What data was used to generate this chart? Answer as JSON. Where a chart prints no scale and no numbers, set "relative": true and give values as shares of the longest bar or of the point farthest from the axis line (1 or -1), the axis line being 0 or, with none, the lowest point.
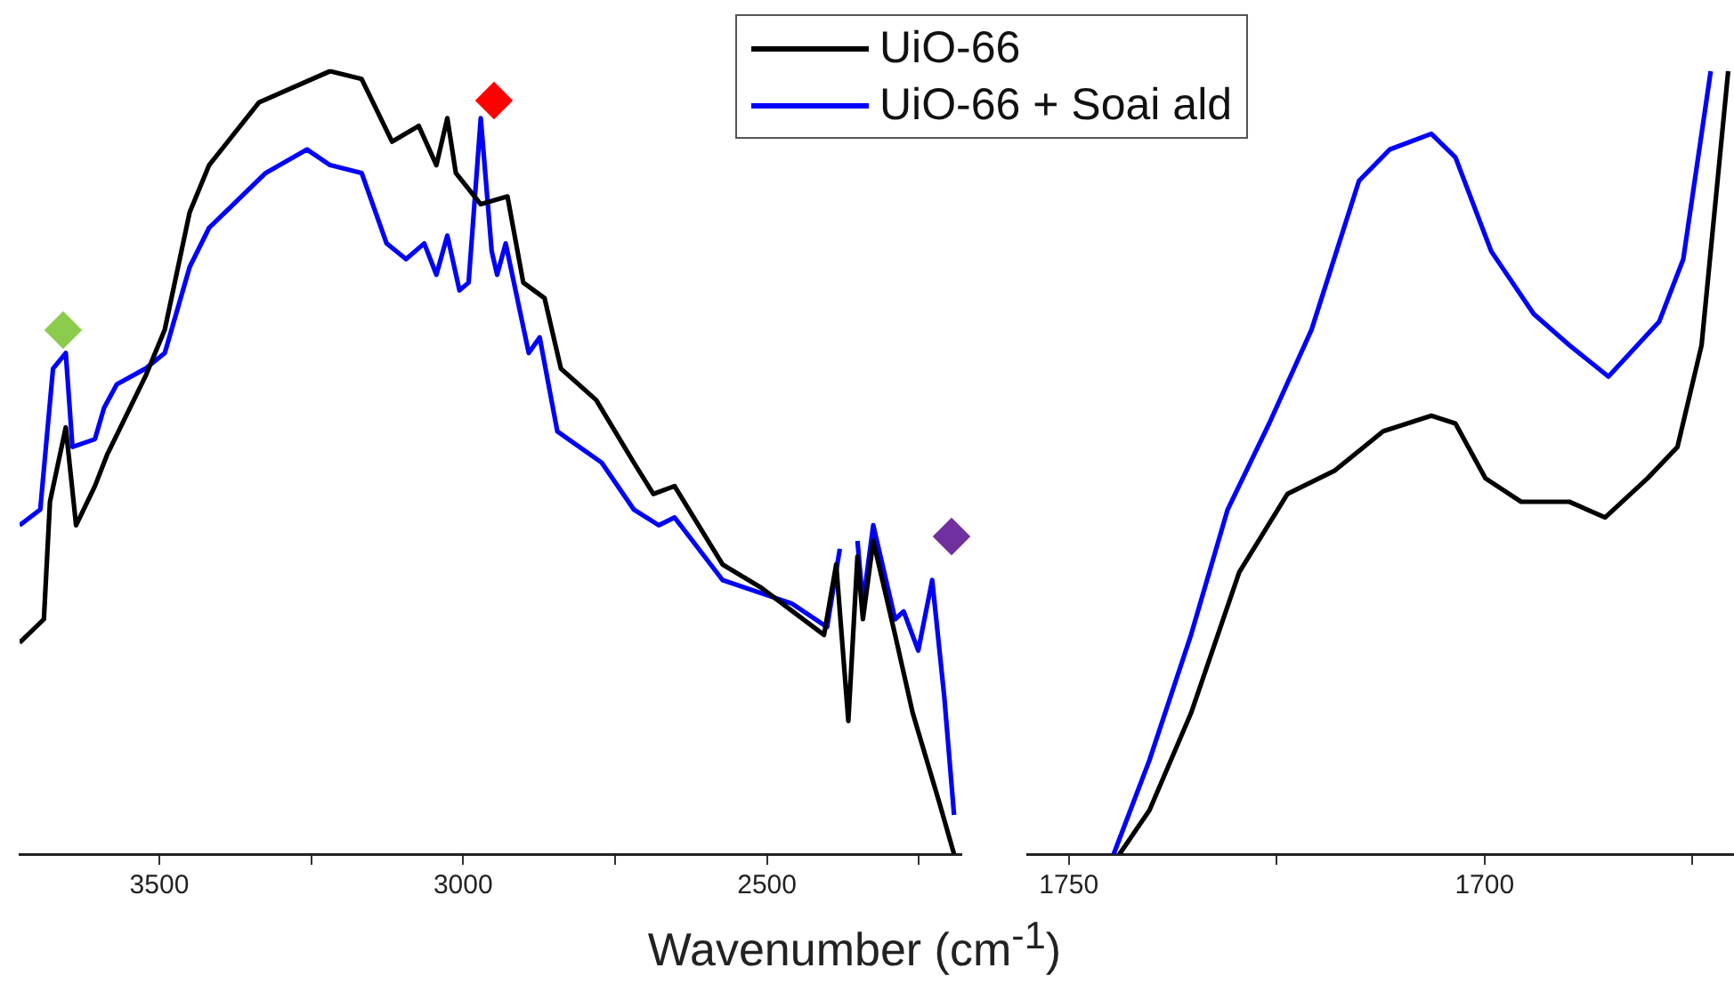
{
  "chart_data": [
    {
      "type": "line",
      "relative": true,
      "xlabel": "Wavenumber (cm$^{-1}$)",
      "legend": "top right",
      "grid": false,
      "marker": "none",
      "line_style": "solid",
      "xlim": [
        3730,
        2180
      ],
      "xticks": [
        3500,
        {
          "value": 3250,
          "label": null
        },
        3000,
        {
          "value": 2750,
          "label": null
        },
        2500,
        {
          "value": 2250,
          "label": null
        }
      ],
      "series": [
        {
          "name": "UiO-66",
          "color": "#000000",
          "x": [
            3730,
            3690,
            3680,
            3654,
            3637,
            3606,
            3586,
            3523,
            3491,
            3450,
            3418,
            3336,
            3219,
            3167,
            3117,
            3073,
            3044,
            3026,
            3012,
            2971,
            2927,
            2901,
            2866,
            2839,
            2781,
            2719,
            2687,
            2652,
            2573,
            2509,
            2406,
            2386,
            2366,
            2351,
            2342,
            2325,
            2289,
            2260,
            2216,
            2192
          ],
          "values": [
            0.27,
            0.3,
            0.45,
            0.545,
            0.42,
            0.47,
            0.51,
            0.61,
            0.67,
            0.82,
            0.88,
            0.96,
            1.0,
            0.99,
            0.91,
            0.93,
            0.88,
            0.94,
            0.87,
            0.83,
            0.84,
            0.73,
            0.71,
            0.62,
            0.58,
            0.5,
            0.46,
            0.47,
            0.37,
            0.34,
            0.28,
            0.37,
            0.17,
            0.38,
            0.3,
            0.4,
            0.28,
            0.18,
            0.065,
            0
          ]
        },
        {
          "name": "UiO-66 + Soai ald",
          "color": "#0000ff",
          "x": [
            3730,
            3696,
            3675,
            3654,
            3643,
            3606,
            3591,
            3570,
            3523,
            3491,
            3450,
            3418,
            3325,
            3257,
            3219,
            3167,
            3126,
            3094,
            3064,
            3044,
            3026,
            3006,
            2991,
            2971,
            2953,
            2944,
            2930,
            2892,
            2874,
            2845,
            2772,
            2719,
            2678,
            2652,
            2573,
            2459,
            2401,
            2380,
            2366,
            2351,
            2342,
            2325,
            2289,
            2275,
            2251,
            2228,
            2208,
            2192
          ],
          "values": [
            0.42,
            0.44,
            0.62,
            0.64,
            0.52,
            0.53,
            0.57,
            0.6,
            0.62,
            0.64,
            0.75,
            0.8,
            0.87,
            0.9,
            0.88,
            0.87,
            0.78,
            0.76,
            0.78,
            0.74,
            0.79,
            0.72,
            0.73,
            0.94,
            0.77,
            0.74,
            0.78,
            0.64,
            0.66,
            0.54,
            0.5,
            0.44,
            0.42,
            0.43,
            0.35,
            0.32,
            0.29,
            0.39,
            null,
            0.4,
            0.32,
            0.42,
            0.3,
            0.31,
            0.26,
            0.35,
            0.2,
            0.05
          ]
        }
      ]
    },
    {
      "type": "line",
      "relative": true,
      "grid": false,
      "marker": "none",
      "line_style": "solid",
      "xlim": [
        1755,
        1670
      ],
      "xticks": [
        1750,
        {
          "value": 1725,
          "label": null
        },
        1700,
        {
          "value": 1675,
          "label": null
        }
      ],
      "series": [
        {
          "color": "#000000",
          "x": [
            1743.9,
            1740.3,
            1735.3,
            1729.5,
            1723.7,
            1718.0,
            1712.2,
            1706.4,
            1703.5,
            1699.9,
            1695.6,
            1689.8,
            1685.5,
            1680.4,
            1676.8,
            1673.9,
            1670.7
          ],
          "values": [
            0,
            0.056,
            0.18,
            0.36,
            0.46,
            0.49,
            0.54,
            0.56,
            0.55,
            0.48,
            0.45,
            0.45,
            0.43,
            0.48,
            0.52,
            0.65,
            1.0
          ]
        },
        {
          "color": "#0000ff",
          "x": [
            1744.6,
            1740.3,
            1735.3,
            1730.9,
            1725.9,
            1720.8,
            1715.1,
            1711.4,
            1706.4,
            1703.5,
            1699.2,
            1694.1,
            1689.8,
            1685.1,
            1679.0,
            1676.1,
            1672.8
          ],
          "values": [
            0,
            0.12,
            0.28,
            0.44,
            0.55,
            0.67,
            0.86,
            0.9,
            0.92,
            0.89,
            0.77,
            0.69,
            0.65,
            0.61,
            0.68,
            0.76,
            1.0
          ]
        }
      ]
    }
  ]
}
